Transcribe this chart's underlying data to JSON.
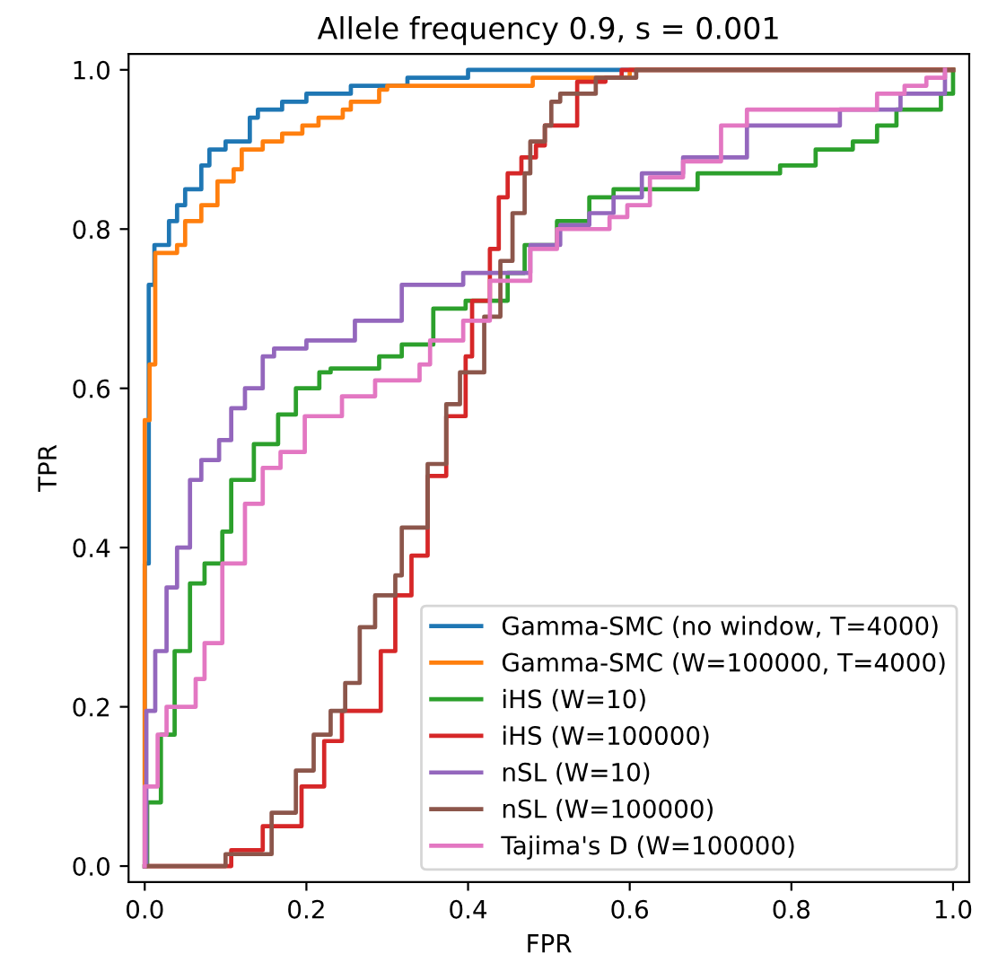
{
  "chart_data": {
    "type": "step",
    "title": "Allele frequency 0.9, s = 0.001",
    "xlabel": "FPR",
    "ylabel": "TPR",
    "xlim": [
      -0.02,
      1.02
    ],
    "ylim": [
      -0.02,
      1.02
    ],
    "xticks": [
      {
        "value": 0,
        "label": "0.0"
      },
      0.2,
      0.4,
      0.6,
      0.8,
      {
        "value": 1,
        "label": "1.0"
      }
    ],
    "yticks": [
      {
        "value": 0,
        "label": "0.0"
      },
      0.2,
      0.4,
      0.6,
      0.8,
      {
        "value": 1,
        "label": "1.0"
      }
    ],
    "grid": false,
    "legend": "bottom right",
    "series": [
      {
        "name": "Gamma-SMC (no window, T=4000)",
        "color": "#1f77b4",
        "x": [
          0,
          0,
          0.005,
          0.012,
          0.03,
          0.04,
          0.05,
          0.07,
          0.08,
          0.1,
          0.13,
          0.14,
          0.17,
          0.2,
          0.255,
          0.325,
          0.4,
          1.0
        ],
        "values": [
          0,
          0.38,
          0.73,
          0.78,
          0.81,
          0.83,
          0.85,
          0.88,
          0.9,
          0.91,
          0.94,
          0.95,
          0.96,
          0.97,
          0.98,
          0.99,
          1.0,
          1.0
        ]
      },
      {
        "name": "Gamma-SMC (W=100000, T=4000)",
        "color": "#ff7f0e",
        "x": [
          0,
          0,
          0.006,
          0.013,
          0.04,
          0.05,
          0.07,
          0.09,
          0.11,
          0.12,
          0.146,
          0.17,
          0.195,
          0.215,
          0.245,
          0.255,
          0.29,
          0.3,
          0.48,
          0.6,
          1.0
        ],
        "values": [
          0,
          0.56,
          0.63,
          0.77,
          0.78,
          0.81,
          0.83,
          0.86,
          0.875,
          0.9,
          0.91,
          0.92,
          0.93,
          0.94,
          0.95,
          0.96,
          0.975,
          0.98,
          0.99,
          1.0,
          1.0
        ]
      },
      {
        "name": "iHS (W=10)",
        "color": "#2ca02c",
        "x": [
          0,
          0.003,
          0.02,
          0.037,
          0.056,
          0.074,
          0.096,
          0.107,
          0.135,
          0.165,
          0.187,
          0.216,
          0.23,
          0.29,
          0.318,
          0.357,
          0.397,
          0.449,
          0.47,
          0.51,
          0.55,
          0.58,
          0.684,
          0.786,
          0.83,
          0.876,
          0.906,
          0.93,
          0.985,
          1.0
        ],
        "values": [
          0,
          0.08,
          0.165,
          0.27,
          0.355,
          0.38,
          0.42,
          0.485,
          0.53,
          0.567,
          0.6,
          0.62,
          0.625,
          0.64,
          0.655,
          0.7,
          0.71,
          0.745,
          0.78,
          0.81,
          0.84,
          0.85,
          0.87,
          0.88,
          0.9,
          0.91,
          0.93,
          0.95,
          0.97,
          1.0
        ]
      },
      {
        "name": "iHS (W=100000)",
        "color": "#d62728",
        "x": [
          0,
          0.078,
          0.107,
          0.146,
          0.194,
          0.222,
          0.244,
          0.292,
          0.31,
          0.33,
          0.35,
          0.373,
          0.397,
          0.405,
          0.427,
          0.438,
          0.449,
          0.466,
          0.484,
          0.495,
          0.525,
          0.535,
          0.57,
          0.59,
          1.0
        ],
        "values": [
          0,
          0,
          0.02,
          0.05,
          0.1,
          0.157,
          0.195,
          0.27,
          0.34,
          0.39,
          0.49,
          0.565,
          0.64,
          0.71,
          0.775,
          0.84,
          0.87,
          0.89,
          0.905,
          0.93,
          0.93,
          0.985,
          0.99,
          1.0,
          1.0
        ]
      },
      {
        "name": "nSL (W=10)",
        "color": "#9467bd",
        "x": [
          0,
          0.002,
          0.013,
          0.027,
          0.04,
          0.056,
          0.07,
          0.092,
          0.107,
          0.124,
          0.146,
          0.16,
          0.2,
          0.26,
          0.318,
          0.394,
          0.477,
          0.514,
          0.55,
          0.58,
          0.615,
          0.666,
          0.745,
          0.86,
          0.935,
          0.99
        ],
        "values": [
          0,
          0.195,
          0.27,
          0.35,
          0.4,
          0.485,
          0.51,
          0.535,
          0.575,
          0.6,
          0.64,
          0.65,
          0.66,
          0.685,
          0.73,
          0.745,
          0.78,
          0.805,
          0.82,
          0.84,
          0.87,
          0.89,
          0.93,
          0.95,
          0.97,
          1.0
        ]
      },
      {
        "name": "nSL (W=100000)",
        "color": "#8c564b",
        "x": [
          0,
          0.063,
          0.1,
          0.157,
          0.187,
          0.209,
          0.23,
          0.248,
          0.266,
          0.285,
          0.31,
          0.318,
          0.35,
          0.373,
          0.39,
          0.42,
          0.44,
          0.455,
          0.47,
          0.477,
          0.495,
          0.503,
          0.514,
          0.558,
          0.608,
          1.0
        ],
        "values": [
          0,
          0,
          0.015,
          0.067,
          0.12,
          0.165,
          0.195,
          0.23,
          0.3,
          0.34,
          0.365,
          0.425,
          0.505,
          0.58,
          0.62,
          0.69,
          0.76,
          0.82,
          0.87,
          0.91,
          0.93,
          0.96,
          0.97,
          0.99,
          1.0,
          1.0
        ]
      },
      {
        "name": "Tajima's D (W=100000)",
        "color": "#e377c2",
        "x": [
          0,
          0,
          0.016,
          0.027,
          0.063,
          0.074,
          0.096,
          0.124,
          0.146,
          0.168,
          0.198,
          0.244,
          0.285,
          0.34,
          0.353,
          0.394,
          0.427,
          0.477,
          0.51,
          0.575,
          0.597,
          0.625,
          0.666,
          0.713,
          0.745,
          0.906,
          0.94,
          0.967,
          0.99
        ],
        "values": [
          0,
          0.1,
          0.165,
          0.2,
          0.235,
          0.28,
          0.38,
          0.455,
          0.5,
          0.52,
          0.565,
          0.59,
          0.61,
          0.63,
          0.66,
          0.685,
          0.735,
          0.775,
          0.8,
          0.815,
          0.83,
          0.865,
          0.885,
          0.93,
          0.95,
          0.97,
          0.98,
          0.99,
          1.0
        ]
      }
    ]
  }
}
